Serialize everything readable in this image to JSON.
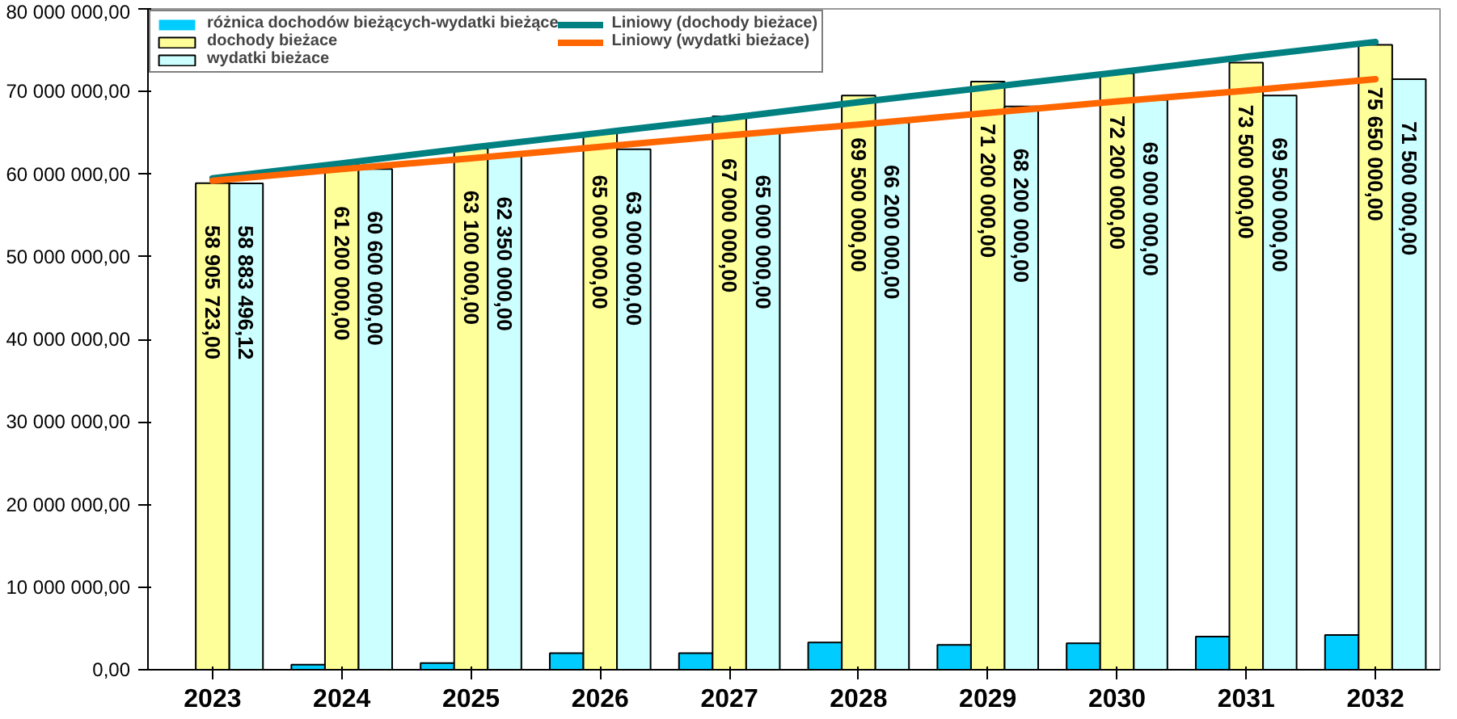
{
  "chart_data": {
    "type": "bar",
    "categories": [
      "2023",
      "2024",
      "2025",
      "2026",
      "2027",
      "2028",
      "2029",
      "2030",
      "2031",
      "2032"
    ],
    "series": [
      {
        "name": "różnica dochodów bieżących-wydatki bieżące",
        "color": "#00ccff",
        "values": [
          0,
          600000,
          800000,
          2000000,
          2000000,
          3300000,
          3000000,
          3200000,
          4000000,
          4200000
        ]
      },
      {
        "name": "dochody bieżace",
        "color": "#ffff99",
        "values": [
          58905723.0,
          61200000,
          63100000,
          65000000,
          67000000,
          69500000,
          71200000,
          72200000,
          73500000,
          75650000
        ],
        "value_labels": [
          "58 905 723,00",
          "61 200 000,00",
          "63 100 000,00",
          "65 000 000,00",
          "67 000 000,00",
          "69 500 000,00",
          "71 200 000,00",
          "72 200 000,00",
          "73 500 000,00",
          "75 650 000,00"
        ]
      },
      {
        "name": "wydatki bieżace",
        "color": "#ccffff",
        "values": [
          58883496.12,
          60600000,
          62350000,
          63000000,
          65000000,
          66200000,
          68200000,
          69000000,
          69500000,
          71500000
        ],
        "value_labels": [
          "58 883 496,12",
          "60 600 000,00",
          "62 350 000,00",
          "63 000 000,00",
          "65 000 000,00",
          "66 200 000,00",
          "68 200 000,00",
          "69 000 000,00",
          "69 500 000,00",
          "71 500 000,00"
        ]
      },
      {
        "name": "Liniowy (dochody bieżace)",
        "type": "line",
        "color": "#008080",
        "values": [
          59500000,
          61300000,
          63200000,
          65000000,
          66800000,
          68700000,
          70500000,
          72300000,
          74200000,
          76000000
        ]
      },
      {
        "name": "Liniowy (wydatki bieżace)",
        "type": "line",
        "color": "#ff6600",
        "values": [
          59200000,
          60600000,
          61900000,
          63300000,
          64700000,
          66000000,
          67400000,
          68800000,
          70100000,
          71500000
        ]
      }
    ],
    "ylim": [
      0,
      80000000
    ],
    "yticks": [
      {
        "value": 0,
        "label": "0,00"
      },
      {
        "value": 10000000,
        "label": "10 000 000,00"
      },
      {
        "value": 20000000,
        "label": "20 000 000,00"
      },
      {
        "value": 30000000,
        "label": "30 000 000,00"
      },
      {
        "value": 40000000,
        "label": "40 000 000,00"
      },
      {
        "value": 50000000,
        "label": "50 000 000,00"
      },
      {
        "value": 60000000,
        "label": "60 000 000,00"
      },
      {
        "value": 70000000,
        "label": "70 000 000,00"
      },
      {
        "value": 80000000,
        "label": "80 000 000,00"
      }
    ],
    "grid": false,
    "legend": "top",
    "line_style": "solid",
    "marker": "none"
  }
}
